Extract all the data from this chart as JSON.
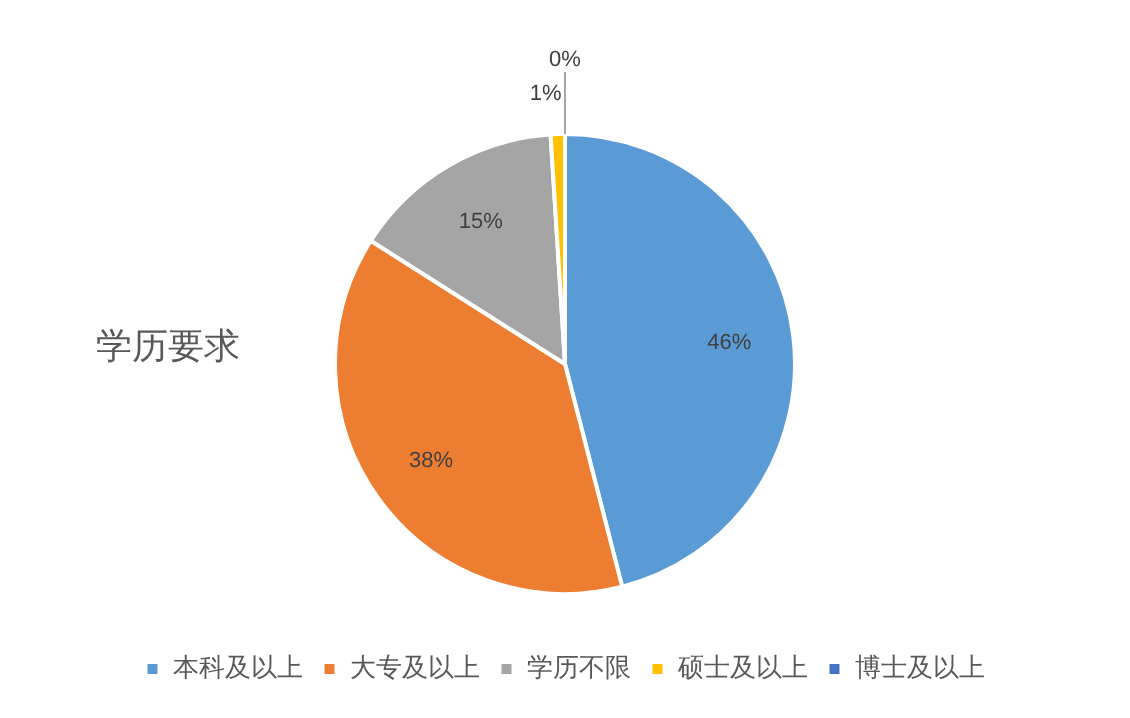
{
  "chart_data": {
    "type": "pie",
    "title": "学历要求",
    "categories": [
      "本科及以上",
      "大专及以上",
      "学历不限",
      "硕士及以上",
      "博士及以上"
    ],
    "values": [
      46,
      38,
      15,
      1,
      0
    ],
    "colors": [
      "#5b9bd5",
      "#ed7d31",
      "#a5a5a5",
      "#ffc000",
      "#4472c4"
    ],
    "value_labels": [
      "46%",
      "38%",
      "15%",
      "1%",
      "0%"
    ],
    "legend": "bottom"
  }
}
